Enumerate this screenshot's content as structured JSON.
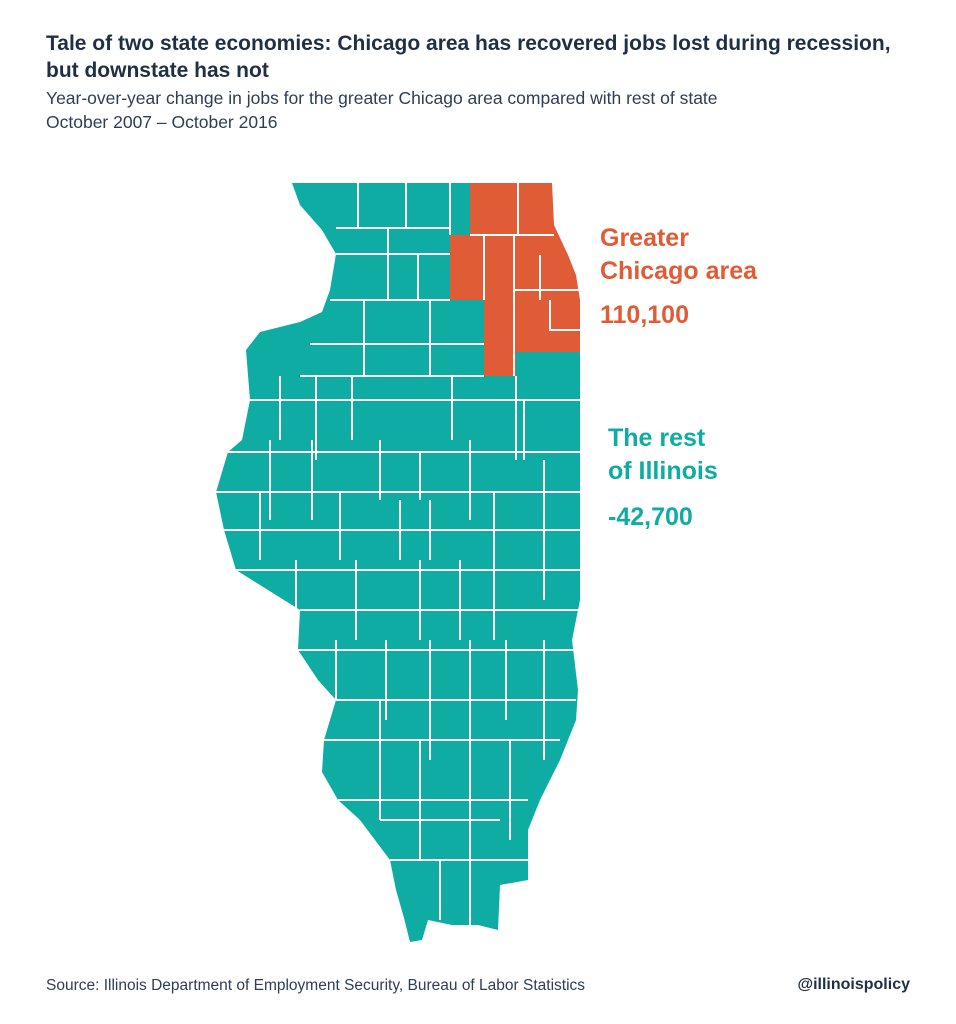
{
  "title": "Tale of two state economies: Chicago area has recovered jobs lost during recession, but downstate has not",
  "subtitle_line1": "Year-over-year change in jobs for the greater Chicago area compared with rest of state",
  "subtitle_line2": "October 2007 – October 2016",
  "colors": {
    "chicago": "#e05c36",
    "rest": "#0eaca2"
  },
  "regions": {
    "chicago": {
      "label_line1": "Greater",
      "label_line2": "Chicago area",
      "value": "110,100"
    },
    "rest": {
      "label_line1": "The rest",
      "label_line2": "of Illinois",
      "value": "-42,700"
    }
  },
  "source": "Source:  Illinois Department of Employment Security, Bureau of Labor Statistics",
  "handle": "@illinoispolicy"
}
